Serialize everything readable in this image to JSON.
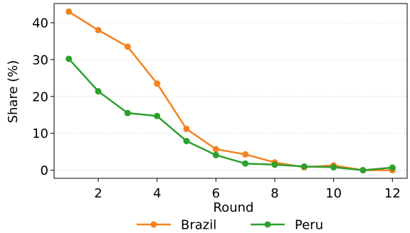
{
  "chart_data": {
    "type": "line",
    "x": [
      1,
      2,
      3,
      4,
      5,
      6,
      7,
      8,
      9,
      10,
      11,
      12
    ],
    "series": [
      {
        "name": "Brazil",
        "color": "#f5821f",
        "values": [
          43.0,
          38.0,
          33.5,
          23.5,
          11.2,
          5.7,
          4.3,
          2.1,
          0.8,
          1.3,
          0.0,
          0.0
        ]
      },
      {
        "name": "Peru",
        "color": "#2ca02c",
        "values": [
          30.2,
          21.4,
          15.5,
          14.7,
          7.9,
          4.1,
          1.8,
          1.5,
          1.0,
          0.8,
          0.0,
          0.7
        ]
      }
    ],
    "xlabel": "Round",
    "ylabel": "Share (%)",
    "xticks": [
      2,
      4,
      6,
      8,
      10,
      12
    ],
    "yticks": [
      0,
      10,
      20,
      30,
      40
    ],
    "xlim": [
      0.5,
      12.5
    ],
    "ylim": [
      -2.2,
      45.2
    ],
    "grid": "horizontal-dotted",
    "legend_placement": "bottom-center"
  }
}
